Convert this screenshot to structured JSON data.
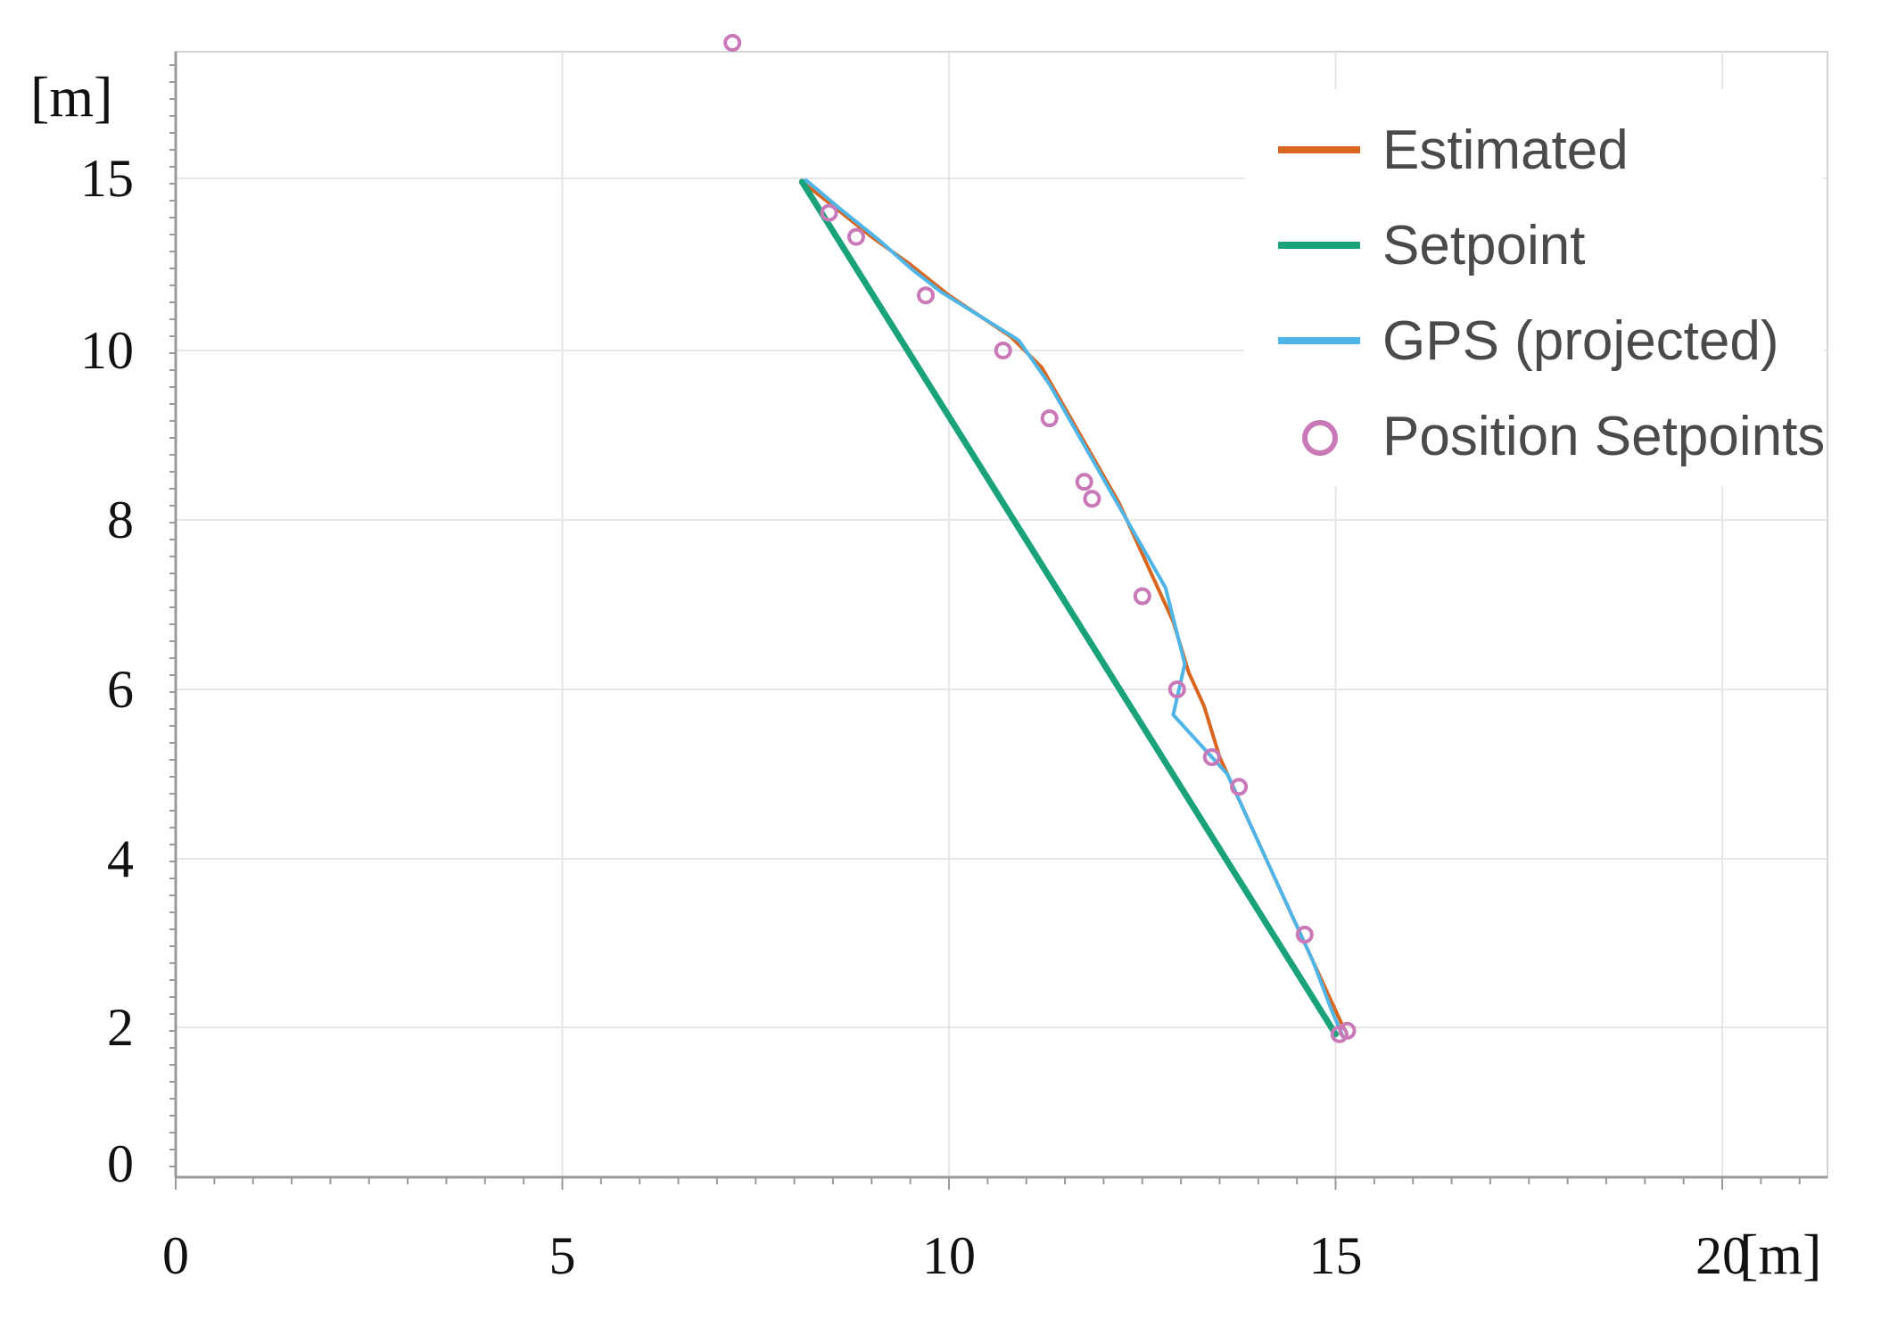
{
  "chart_data": {
    "type": "line",
    "xlabel": "[m]",
    "ylabel": "[m]",
    "x_ticks": [
      {
        "value": 0,
        "label": "0"
      },
      {
        "value": 5,
        "label": "5"
      },
      {
        "value": 10,
        "label": "10"
      },
      {
        "value": 15,
        "label": "15"
      },
      {
        "value": 20,
        "label": "20"
      }
    ],
    "y_ticks": [
      {
        "value": 0,
        "label": "0"
      },
      {
        "value": 2,
        "label": "2"
      },
      {
        "value": 4,
        "label": "4"
      },
      {
        "value": 6,
        "label": "6"
      },
      {
        "value": 8,
        "label": "8"
      },
      {
        "value": 10,
        "label": "10"
      },
      {
        "value": 15,
        "label": "15"
      }
    ],
    "grid": true,
    "legend_position": "top-right",
    "series": [
      {
        "name": "Estimated",
        "color": "#d9661f",
        "x": [
          8.1,
          8.5,
          9.0,
          9.5,
          10.0,
          10.4,
          10.8,
          11.2,
          11.7,
          12.2,
          12.6,
          12.9,
          13.1,
          13.3,
          13.5,
          13.8,
          14.2,
          14.6,
          14.9,
          15.1
        ],
        "y": [
          14.9,
          14.2,
          13.3,
          12.5,
          11.6,
          11.0,
          10.4,
          9.8,
          9.0,
          8.2,
          7.4,
          6.8,
          6.2,
          5.8,
          5.2,
          4.6,
          3.8,
          3.0,
          2.4,
          2.0
        ]
      },
      {
        "name": "Setpoint",
        "color": "#1aa37a",
        "x": [
          8.1,
          15.0
        ],
        "y": [
          14.9,
          1.9
        ]
      },
      {
        "name": "GPS (projected)",
        "color": "#4fb5e6",
        "x": [
          8.15,
          8.6,
          9.1,
          9.5,
          9.9,
          10.4,
          10.9,
          11.3,
          11.8,
          12.3,
          12.8,
          13.05,
          12.9,
          13.2,
          13.6,
          13.9,
          14.3,
          14.7,
          14.95,
          15.1
        ],
        "y": [
          14.95,
          14.1,
          13.2,
          12.4,
          11.7,
          11.0,
          10.3,
          9.6,
          8.8,
          8.0,
          7.2,
          6.3,
          5.7,
          5.4,
          5.0,
          4.4,
          3.6,
          2.8,
          2.2,
          1.85
        ]
      }
    ],
    "markers": {
      "name": "Position Setpoints",
      "color": "#c978b8",
      "points": [
        [
          7.2,
          17.4
        ],
        [
          8.45,
          14.0
        ],
        [
          8.8,
          13.3
        ],
        [
          9.7,
          11.6
        ],
        [
          10.7,
          10.0
        ],
        [
          11.3,
          9.2
        ],
        [
          11.75,
          8.45
        ],
        [
          11.85,
          8.25
        ],
        [
          12.5,
          7.1
        ],
        [
          12.95,
          6.0
        ],
        [
          13.4,
          5.2
        ],
        [
          13.75,
          4.85
        ],
        [
          14.6,
          3.1
        ],
        [
          15.05,
          1.9
        ],
        [
          15.15,
          1.95
        ]
      ]
    }
  }
}
